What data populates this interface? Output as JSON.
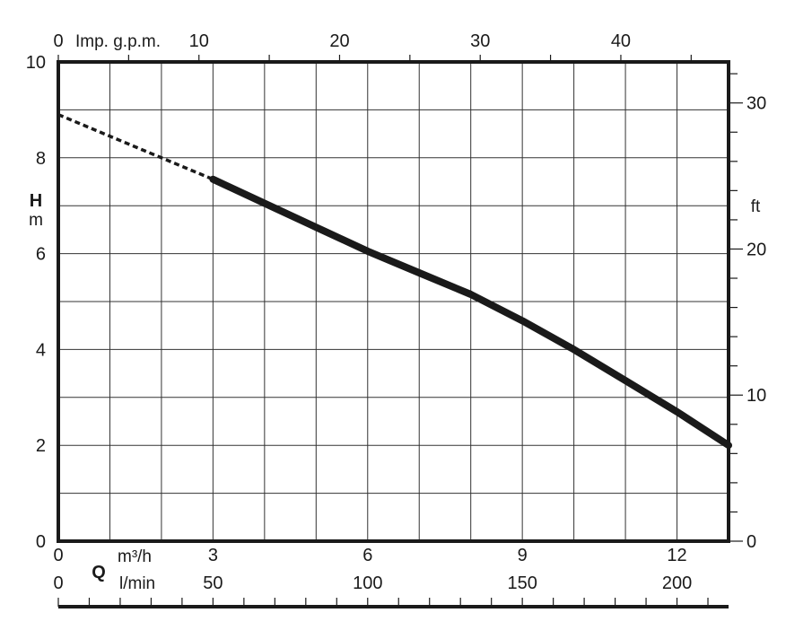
{
  "chart_data": {
    "type": "line",
    "ylabel": "H",
    "yunit": "m",
    "ylim": [
      0,
      10
    ],
    "yticks": [
      0,
      2,
      4,
      6,
      8,
      10
    ],
    "right_axis": {
      "unit": "ft",
      "ticks": [
        0,
        10,
        20,
        30
      ],
      "ft_per_m": 3.28084
    },
    "top_axis": {
      "label": "Imp. g.p.m.",
      "ticks": [
        0,
        10,
        20,
        30,
        40
      ],
      "gpm_per_m3h": 3.6661
    },
    "xlabel": "Q",
    "xunit_m3h": "m³/h",
    "xunit_lmin": "l/min",
    "xlim": [
      0,
      13
    ],
    "xticks_m3h": [
      0,
      3,
      6,
      9,
      12
    ],
    "xticks_lmin": [
      0,
      50,
      100,
      150,
      200
    ],
    "lmin_per_m3h": 16.6667,
    "series": [
      {
        "style": "dotted",
        "x": [
          0,
          1,
          2,
          3
        ],
        "y": [
          8.9,
          8.45,
          8.0,
          7.55
        ]
      },
      {
        "style": "solid",
        "x": [
          3,
          4,
          5,
          6,
          7,
          8,
          9,
          10,
          11,
          12,
          13
        ],
        "y": [
          7.55,
          7.05,
          6.55,
          6.05,
          5.6,
          5.15,
          4.6,
          4.0,
          3.35,
          2.7,
          2.0
        ]
      }
    ]
  }
}
